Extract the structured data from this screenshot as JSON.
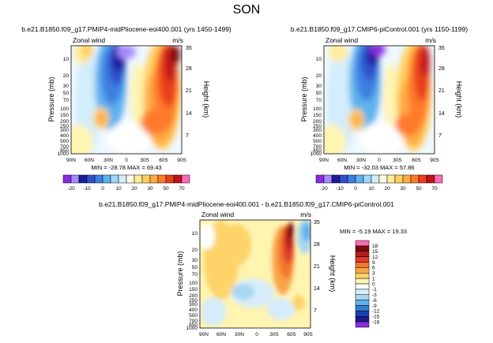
{
  "page_title": "SON",
  "chart_data": [
    {
      "type": "contour",
      "title": "b.e21.B1850.f09_g17.PMIP4-midPliocene-eoi400.001 (yrs 1450-1499)",
      "variable": "Zonal wind",
      "units": "m/s",
      "ylabel_left": "Pressure (mb)",
      "ylabel_right": "Height (km)",
      "x_ticks": [
        "90N",
        "60N",
        "30N",
        "0",
        "30S",
        "60S",
        "90S"
      ],
      "pressure_ticks": [
        "10",
        "20",
        "30",
        "50",
        "70",
        "100",
        "150",
        "200",
        "250",
        "300",
        "400",
        "500",
        "700",
        "850",
        "1000"
      ],
      "height_ticks": [
        "35",
        "28",
        "21",
        "14",
        "7"
      ],
      "stats": "MIN = -28.78   MAX = 69.43",
      "min": -28.78,
      "max": 69.43,
      "colorbar_labels": [
        "-20",
        "-10",
        "0",
        "10",
        "20",
        "30",
        "50",
        "70"
      ]
    },
    {
      "type": "contour",
      "title": "b.e21.B1850.f09_g17.CMIP6-piControl.001 (yrs 1150-1199)",
      "variable": "Zonal wind",
      "units": "m/s",
      "ylabel_left": "Pressure (mb)",
      "ylabel_right": "Height (km)",
      "x_ticks": [
        "90N",
        "60N",
        "30N",
        "0",
        "30S",
        "60S",
        "90S"
      ],
      "pressure_ticks": [
        "10",
        "20",
        "30",
        "50",
        "70",
        "100",
        "150",
        "200",
        "250",
        "300",
        "400",
        "500",
        "700",
        "850",
        "1000"
      ],
      "height_ticks": [
        "35",
        "28",
        "21",
        "14",
        "7"
      ],
      "stats": "MIN = -32.03   MAX = 57.86",
      "min": -32.03,
      "max": 57.86,
      "colorbar_labels": [
        "-20",
        "-10",
        "0",
        "10",
        "20",
        "30",
        "50",
        "70"
      ]
    },
    {
      "type": "contour",
      "title": "b.e21.B1850.f09_g17.PMIP4-midPliocene-eoi400.001  -  b.e21.B1850.f09_g17.CMIP6-piControl.001",
      "variable": "Zonal wind",
      "units": "m/s",
      "ylabel_left": "Pressure (mb)",
      "ylabel_right": "Height (km)",
      "x_ticks": [
        "90N",
        "60N",
        "30N",
        "0",
        "30S",
        "60S",
        "90S"
      ],
      "pressure_ticks": [
        "10",
        "20",
        "30",
        "50",
        "70",
        "100",
        "150",
        "200",
        "250",
        "300",
        "400",
        "500",
        "700",
        "850",
        "1000"
      ],
      "height_ticks": [
        "35",
        "28",
        "21",
        "14",
        "7"
      ],
      "stats": "MIN = -5.19   MAX = 19.33",
      "min": -5.19,
      "max": 19.33,
      "colorbar_labels": [
        "18",
        "15",
        "12",
        "9",
        "6",
        "3",
        "1",
        "0",
        "-1",
        "-3",
        "-6",
        "-9",
        "-12",
        "-15",
        "-18"
      ]
    }
  ],
  "colors": {
    "abs_palette": [
      "#8a2be2",
      "#a78bfa",
      "#1c1c9c",
      "#2f52cc",
      "#3c7fe0",
      "#5fb1ee",
      "#9fd7f5",
      "#d2edfb",
      "#fffbe0",
      "#ffec9a",
      "#ffd060",
      "#ffaa44",
      "#ff7a2a",
      "#e8401c",
      "#c1121c",
      "#ff6ab6"
    ],
    "diff_palette": [
      "#ff6ab6",
      "#7d0b0b",
      "#b31e1e",
      "#e03a2a",
      "#f3762f",
      "#f9a648",
      "#fdd36b",
      "#fff4b0",
      "#ffffff",
      "#d6ecfa",
      "#a8d7f3",
      "#5fb3ea",
      "#2f7ed0",
      "#1c3fb0",
      "#1a1a8a",
      "#8a2be2"
    ]
  }
}
